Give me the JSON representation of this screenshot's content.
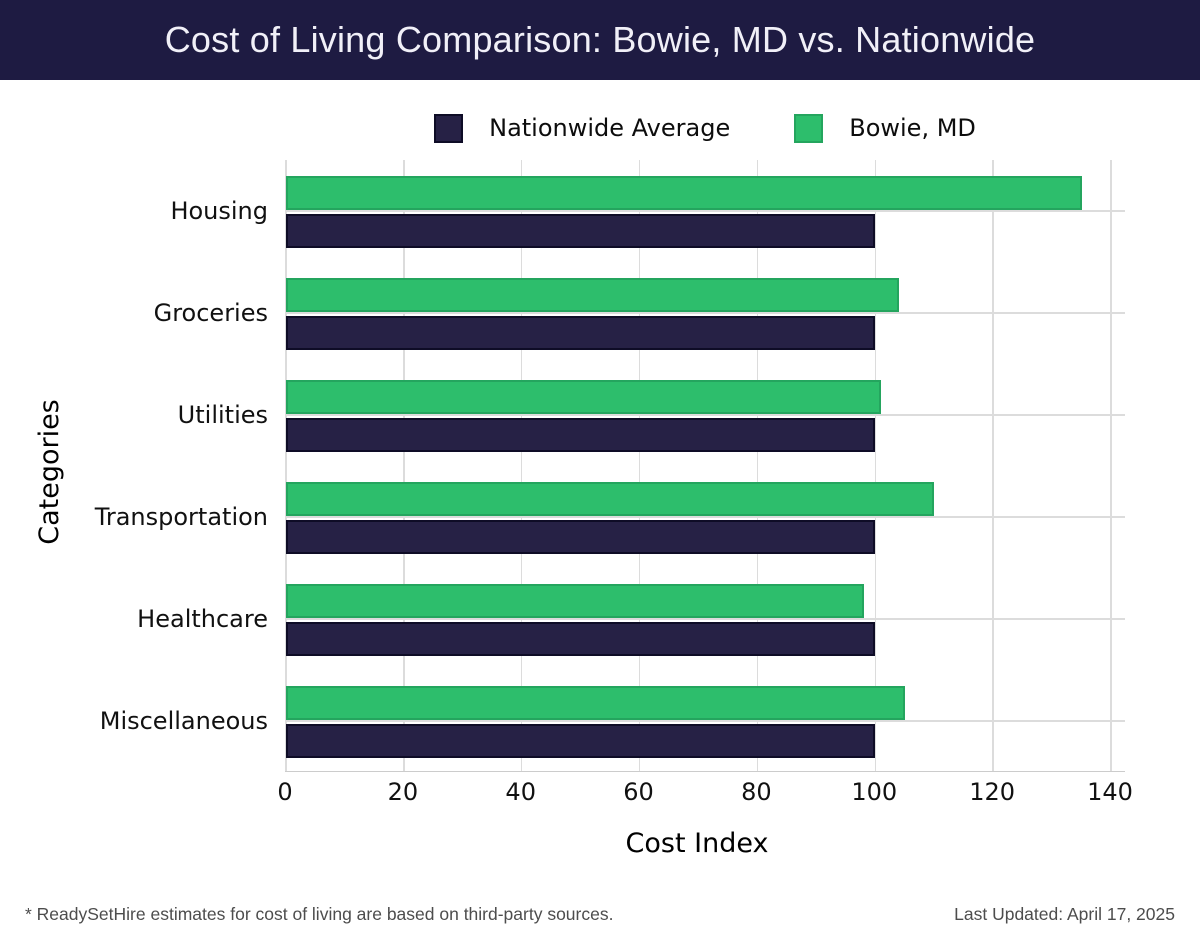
{
  "header": {
    "title": "Cost of Living Comparison: Bowie, MD vs. Nationwide",
    "bg_color": "#1e1b42",
    "text_color": "#f1f0f8"
  },
  "legend": [
    {
      "label": "Nationwide Average",
      "color": "#262145"
    },
    {
      "label": "Bowie, MD",
      "color": "#2dbe6c"
    }
  ],
  "chart_data": {
    "type": "bar",
    "orientation": "horizontal",
    "title": "Cost of Living Comparison: Bowie, MD vs. Nationwide",
    "categories": [
      "Housing",
      "Groceries",
      "Utilities",
      "Transportation",
      "Healthcare",
      "Miscellaneous"
    ],
    "series": [
      {
        "name": "Bowie, MD",
        "color": "#2dbe6c",
        "values": [
          135,
          104,
          101,
          110,
          98,
          105
        ]
      },
      {
        "name": "Nationwide Average",
        "color": "#262145",
        "values": [
          100,
          100,
          100,
          100,
          100,
          100
        ]
      }
    ],
    "xlabel": "Cost Index",
    "ylabel": "Categories",
    "xlim": [
      0,
      140
    ],
    "xticks": [
      0,
      20,
      40,
      60,
      80,
      100,
      120,
      140
    ],
    "grid": true,
    "legend_position": "top center"
  },
  "footer": {
    "note": "* ReadySetHire estimates for cost of living are based on third-party sources.",
    "updated": "Last Updated: April 17, 2025"
  }
}
